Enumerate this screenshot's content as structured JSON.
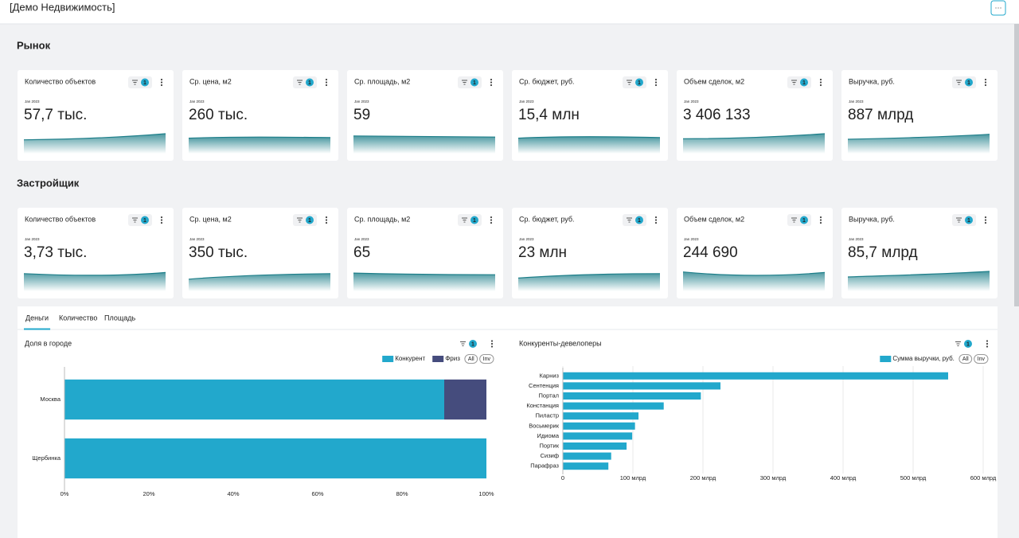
{
  "header": {
    "title": "[Демо Недвижимость]",
    "menu": "···"
  },
  "sections": [
    {
      "title": "Рынок",
      "cards": [
        {
          "title": "Количество объектов",
          "filter_count": "1",
          "period": "Jan 2023",
          "value": "57,7 тыс."
        },
        {
          "title": "Ср. цена, м2",
          "filter_count": "1",
          "period": "Jan 2023",
          "value": "260 тыс."
        },
        {
          "title": "Ср. площадь, м2",
          "filter_count": "1",
          "period": "Jan 2023",
          "value": "59"
        },
        {
          "title": "Ср. бюджет, руб.",
          "filter_count": "1",
          "period": "Jan 2023",
          "value": "15,4 млн"
        },
        {
          "title": "Объем сделок, м2",
          "filter_count": "1",
          "period": "Jan 2023",
          "value": "3 406 133"
        },
        {
          "title": "Выручка, руб.",
          "filter_count": "1",
          "period": "Jan 2023",
          "value": "887 млрд"
        }
      ]
    },
    {
      "title": "Застройщик",
      "cards": [
        {
          "title": "Количество объектов",
          "filter_count": "1",
          "period": "Jan 2023",
          "value": "3,73 тыс."
        },
        {
          "title": "Ср. цена, м2",
          "filter_count": "1",
          "period": "Jan 2023",
          "value": "350 тыс."
        },
        {
          "title": "Ср. площадь, м2",
          "filter_count": "1",
          "period": "Jan 2023",
          "value": "65"
        },
        {
          "title": "Ср. бюджет, руб.",
          "filter_count": "1",
          "period": "Jan 2023",
          "value": "23 млн"
        },
        {
          "title": "Объем сделок, м2",
          "filter_count": "1",
          "period": "Jan 2023",
          "value": "244 690"
        },
        {
          "title": "Выручка, руб.",
          "filter_count": "1",
          "period": "Jan 2023",
          "value": "85,7 млрд"
        }
      ]
    }
  ],
  "tabs": [
    "Деньги",
    "Количество",
    "Площадь"
  ],
  "chart_data": [
    {
      "type": "bar",
      "orientation": "horizontal",
      "stacked": true,
      "title": "Доля в городе",
      "filter_count": "1",
      "legend_buttons": [
        "All",
        "Inv"
      ],
      "categories": [
        "Москва",
        "Щербинка"
      ],
      "series": [
        {
          "name": "Конкурент",
          "color": "#22a8cc",
          "values": [
            90,
            100
          ]
        },
        {
          "name": "Фриз",
          "color": "#454c7d",
          "values": [
            10,
            0
          ]
        }
      ],
      "xlim": [
        0,
        100
      ],
      "xticks": [
        {
          "value": 0,
          "label": "0%"
        },
        {
          "value": 20,
          "label": "20%"
        },
        {
          "value": 40,
          "label": "40%"
        },
        {
          "value": 60,
          "label": "60%"
        },
        {
          "value": 80,
          "label": "80%"
        },
        {
          "value": 100,
          "label": "100%"
        }
      ],
      "grid": false
    },
    {
      "type": "bar",
      "orientation": "horizontal",
      "stacked": false,
      "title": "Конкуренты-девелоперы",
      "filter_count": "1",
      "legend_buttons": [
        "All",
        "Inv"
      ],
      "categories": [
        "Карниз",
        "Сентенция",
        "Портал",
        "Констанция",
        "Пиластр",
        "Восьмерик",
        "Идиома",
        "Портик",
        "Сизиф",
        "Парафраз"
      ],
      "series": [
        {
          "name": "Сумма выручки, руб.",
          "color": "#22a8cc",
          "values": [
            550,
            225,
            197,
            144,
            108,
            103,
            99,
            91,
            69,
            65
          ]
        }
      ],
      "xlim": [
        0,
        600
      ],
      "xticks": [
        0,
        {
          "value": 100,
          "label": "100 млрд"
        },
        {
          "value": 200,
          "label": "200 млрд"
        },
        {
          "value": 300,
          "label": "300 млрд"
        },
        {
          "value": 400,
          "label": "400 млрд"
        },
        {
          "value": 500,
          "label": "500 млрд"
        },
        {
          "value": 600,
          "label": "600 млрд"
        }
      ],
      "grid": true
    }
  ]
}
